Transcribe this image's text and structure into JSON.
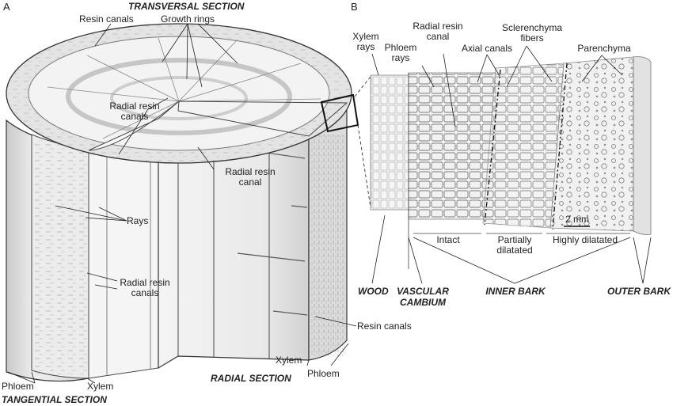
{
  "panels": {
    "a": "A",
    "b": "B"
  },
  "sections": {
    "transversal": "TRANSVERSAL SECTION",
    "radial": "RADIAL SECTION",
    "tangential": "TANGENTIAL SECTION"
  },
  "panel_a_labels": {
    "resin_canals_top": "Resin canals",
    "growth_rings": "Growth rings",
    "radial_resin_canals_center_1": "Radial resin",
    "radial_resin_canals_center_2": "canals",
    "radial_resin_canal_1": "Radial resin",
    "radial_resin_canal_2": "canal",
    "rays": "Rays",
    "radial_resin_canals_left_1": "Radial resin",
    "radial_resin_canals_left_2": "canals",
    "resin_canals_bottom": "Resin canals",
    "xylem_right": "Xylem",
    "phloem_right": "Phloem",
    "phloem_left": "Phloem",
    "xylem_left": "Xylem"
  },
  "panel_b_labels": {
    "xylem_rays_1": "Xylem",
    "xylem_rays_2": "rays",
    "phloem_rays_1": "Phloem",
    "phloem_rays_2": "rays",
    "radial_resin_canal_1": "Radial resin",
    "radial_resin_canal_2": "canal",
    "axial_canals": "Axial canals",
    "sclerenchyma_1": "Sclerenchyma",
    "sclerenchyma_2": "fibers",
    "parenchyma": "Parenchyma",
    "scale_bar": "2 mm",
    "intact": "Intact",
    "partially_1": "Partially",
    "partially_2": "dilatated",
    "highly": "Highly dilatated",
    "wood": "WOOD",
    "vascular_1": "VASCULAR",
    "vascular_2": "CAMBIUM",
    "inner_bark": "INNER BARK",
    "outer_bark": "OUTER BARK"
  }
}
